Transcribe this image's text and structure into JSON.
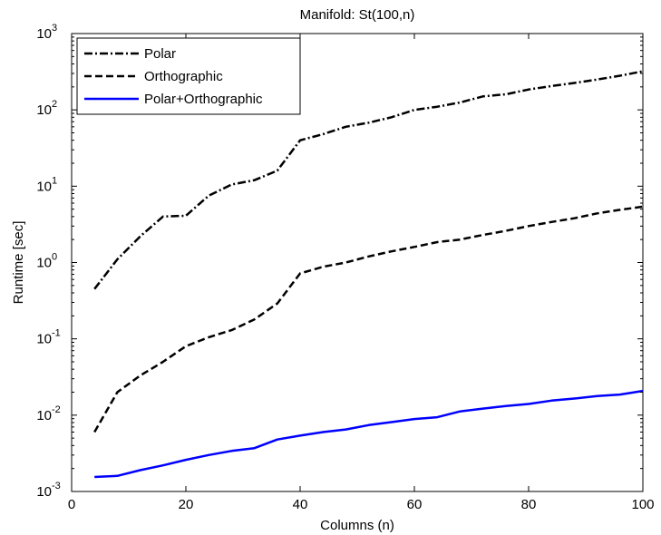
{
  "chart_data": {
    "type": "line",
    "title": "Manifold: St(100,n)",
    "xlabel": "Columns (n)",
    "ylabel": "Runtime [sec]",
    "xlim": [
      0,
      100
    ],
    "ylim": [
      0.001,
      1000
    ],
    "yscale": "log",
    "x_ticks": [
      0,
      20,
      40,
      60,
      80,
      100
    ],
    "y_ticks": [
      {
        "base": "10",
        "exp": "-3",
        "value": 0.001
      },
      {
        "base": "10",
        "exp": "-2",
        "value": 0.01
      },
      {
        "base": "10",
        "exp": "-1",
        "value": 0.1
      },
      {
        "base": "10",
        "exp": "0",
        "value": 1
      },
      {
        "base": "10",
        "exp": "1",
        "value": 10
      },
      {
        "base": "10",
        "exp": "2",
        "value": 100
      },
      {
        "base": "10",
        "exp": "3",
        "value": 1000
      }
    ],
    "grid": false,
    "legend_position": "top-left",
    "x": [
      4,
      8,
      12,
      16,
      20,
      24,
      28,
      32,
      36,
      40,
      44,
      48,
      52,
      56,
      60,
      64,
      68,
      72,
      76,
      80,
      84,
      88,
      92,
      96,
      100
    ],
    "series": [
      {
        "name": "Polar",
        "style": "dashdot",
        "color": "#000000",
        "values": [
          0.45,
          1.1,
          2.2,
          4.0,
          4.1,
          7.5,
          10.5,
          12.0,
          16.0,
          40.0,
          48.0,
          60.0,
          68.0,
          80.0,
          100.0,
          110.0,
          125.0,
          150.0,
          160.0,
          185.0,
          205.0,
          225.0,
          250.0,
          280.0,
          320.0
        ]
      },
      {
        "name": "Orthographic",
        "style": "dashed",
        "color": "#000000",
        "values": [
          0.006,
          0.02,
          0.033,
          0.05,
          0.08,
          0.105,
          0.13,
          0.18,
          0.29,
          0.72,
          0.88,
          1.0,
          1.2,
          1.4,
          1.6,
          1.85,
          2.0,
          2.3,
          2.6,
          3.0,
          3.4,
          3.8,
          4.4,
          4.9,
          5.4
        ]
      },
      {
        "name": "Polar+Orthographic",
        "style": "solid",
        "color": "#0000ff",
        "values": [
          0.00155,
          0.0016,
          0.0019,
          0.0022,
          0.0026,
          0.003,
          0.0034,
          0.0037,
          0.0048,
          0.0054,
          0.006,
          0.0065,
          0.0074,
          0.0081,
          0.0089,
          0.0094,
          0.0112,
          0.0122,
          0.0132,
          0.014,
          0.0155,
          0.0165,
          0.0178,
          0.0186,
          0.0208
        ]
      }
    ]
  }
}
